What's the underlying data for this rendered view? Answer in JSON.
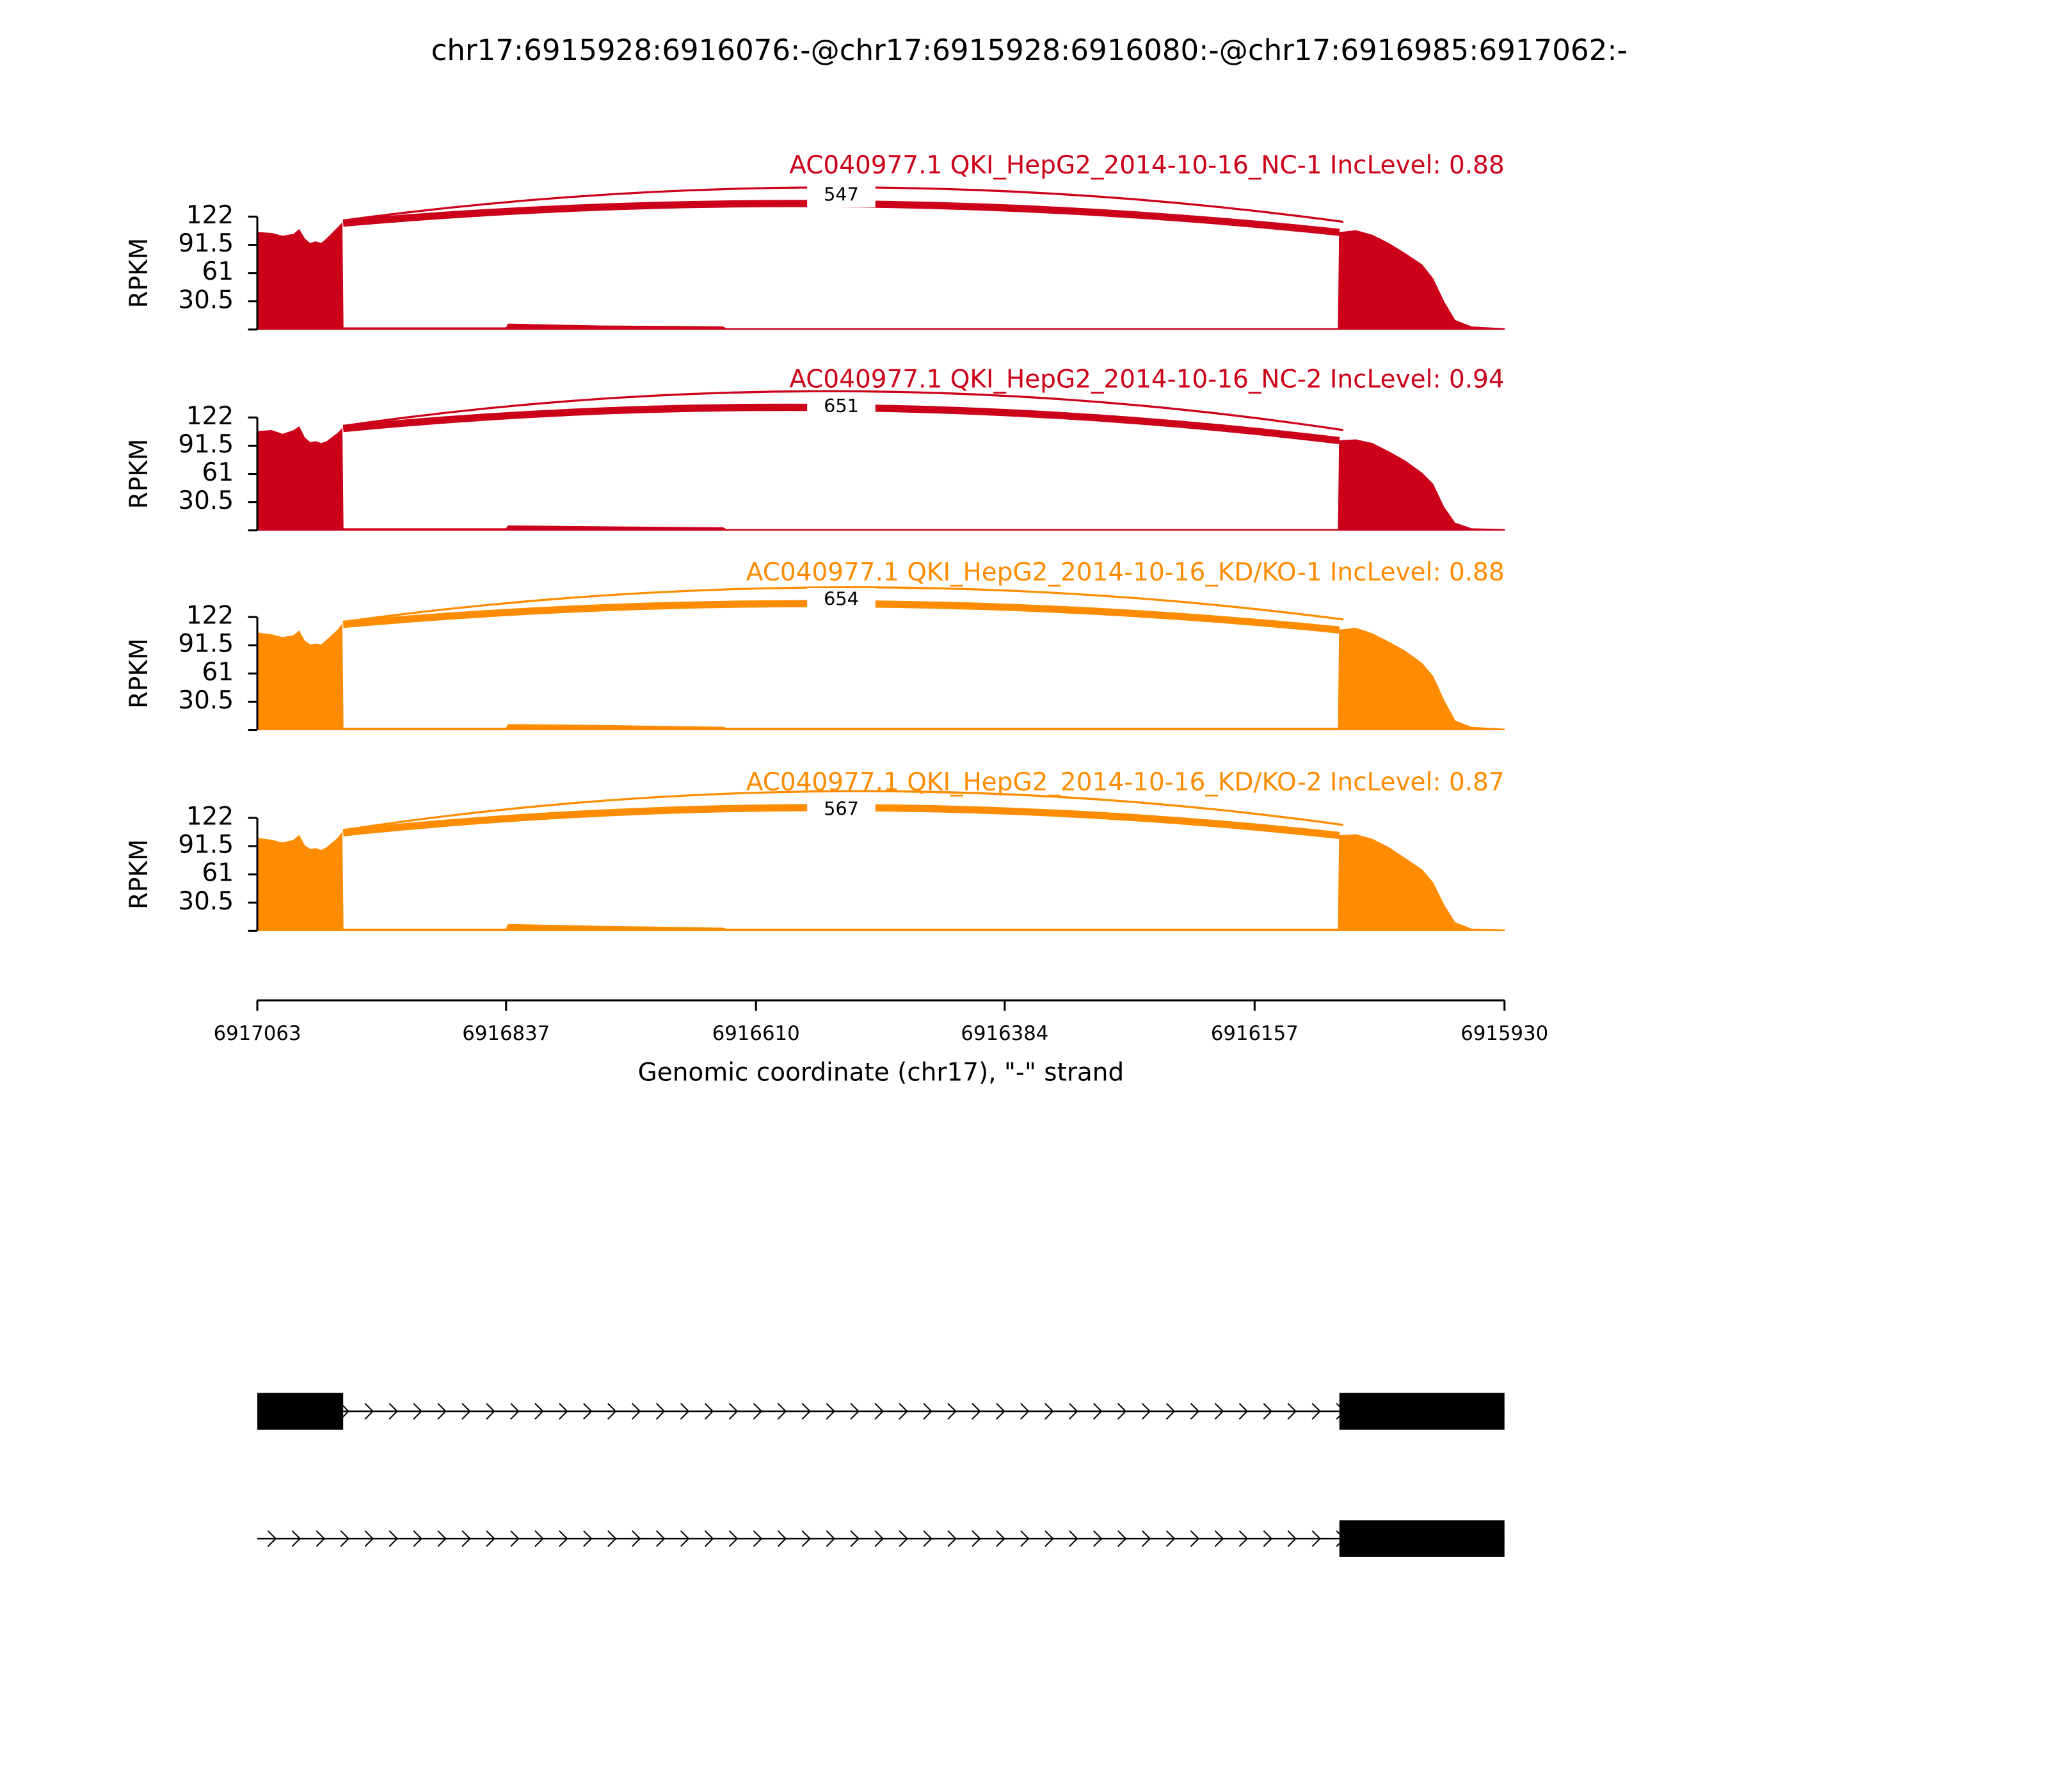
{
  "title": "chr17:6915928:6916076:-@chr17:6915928:6916080:-@chr17:6916985:6917062:-",
  "x_axis": {
    "label": "Genomic coordinate (chr17), \"-\" strand",
    "xlim": [
      6917063,
      6915930
    ],
    "xticks": [
      6917063,
      6916837,
      6916610,
      6916384,
      6916157,
      6915930
    ]
  },
  "chart_data": [
    {
      "type": "area",
      "title": "AC040977.1 QKI_HepG2_2014-10-16_NC-1 IncLevel: 0.88",
      "ylabel": "RPKM",
      "color": "#cc0018",
      "ylim": [
        0,
        122
      ],
      "yticks": [
        30.5,
        61,
        91.5,
        122
      ],
      "x": [
        6917063,
        6917050,
        6917040,
        6917030,
        6917025,
        6917020,
        6917015,
        6917010,
        6917005,
        6917000,
        6916990,
        6916986,
        6916985,
        6916837,
        6916835,
        6916750,
        6916640,
        6916637,
        6916081,
        6916080,
        6916065,
        6916050,
        6916035,
        6916020,
        6916005,
        6915995,
        6915985,
        6915975,
        6915960,
        6915930
      ],
      "values": [
        105,
        104,
        101,
        103,
        108,
        98,
        93,
        95,
        93,
        98,
        110,
        115,
        2,
        2,
        6,
        4,
        3,
        1,
        1,
        105,
        107,
        102,
        93,
        82,
        70,
        55,
        30,
        10,
        3,
        1
      ],
      "junction": {
        "start": 6916985,
        "end": 6916080,
        "count": 547
      }
    },
    {
      "type": "area",
      "title": "AC040977.1 QKI_HepG2_2014-10-16_NC-2 IncLevel: 0.94",
      "ylabel": "RPKM",
      "color": "#cc0018",
      "ylim": [
        0,
        122
      ],
      "yticks": [
        30.5,
        61,
        91.5,
        122
      ],
      "x": [
        6917063,
        6917050,
        6917040,
        6917030,
        6917025,
        6917020,
        6917015,
        6917010,
        6917005,
        6917000,
        6916990,
        6916986,
        6916985,
        6916837,
        6916835,
        6916750,
        6916640,
        6916637,
        6916081,
        6916080,
        6916065,
        6916050,
        6916035,
        6916020,
        6916005,
        6915995,
        6915985,
        6915975,
        6915960,
        6915930
      ],
      "values": [
        107,
        108,
        104,
        108,
        112,
        100,
        95,
        96,
        94,
        96,
        105,
        110,
        2,
        2,
        5,
        4,
        3,
        1,
        1,
        97,
        98,
        94,
        85,
        75,
        62,
        50,
        25,
        8,
        2,
        1
      ],
      "junction": {
        "start": 6916985,
        "end": 6916080,
        "count": 651
      }
    },
    {
      "type": "area",
      "title": "AC040977.1 QKI_HepG2_2014-10-16_KD/KO-1 IncLevel: 0.88",
      "ylabel": "RPKM",
      "color": "#ff8c00",
      "ylim": [
        0,
        122
      ],
      "yticks": [
        30.5,
        61,
        91.5,
        122
      ],
      "x": [
        6917063,
        6917050,
        6917040,
        6917030,
        6917025,
        6917020,
        6917015,
        6917010,
        6917005,
        6917000,
        6916990,
        6916986,
        6916985,
        6916837,
        6916835,
        6916750,
        6916640,
        6916637,
        6916081,
        6916080,
        6916065,
        6916050,
        6916035,
        6916020,
        6916005,
        6915995,
        6915985,
        6915975,
        6915960,
        6915930
      ],
      "values": [
        105,
        103,
        100,
        102,
        107,
        96,
        92,
        93,
        92,
        97,
        108,
        114,
        2,
        2,
        6,
        5,
        3,
        2,
        2,
        108,
        110,
        104,
        95,
        85,
        72,
        58,
        32,
        10,
        3,
        1
      ],
      "junction": {
        "start": 6916985,
        "end": 6916080,
        "count": 654
      }
    },
    {
      "type": "area",
      "title": "AC040977.1 QKI_HepG2_2014-10-16_KD/KO-2 IncLevel: 0.87",
      "ylabel": "RPKM",
      "color": "#ff8c00",
      "ylim": [
        0,
        122
      ],
      "yticks": [
        30.5,
        61,
        91.5,
        122
      ],
      "x": [
        6917063,
        6917050,
        6917040,
        6917030,
        6917025,
        6917020,
        6917015,
        6917010,
        6917005,
        6917000,
        6916990,
        6916986,
        6916985,
        6916837,
        6916835,
        6916750,
        6916640,
        6916637,
        6916081,
        6916080,
        6916065,
        6916050,
        6916035,
        6916020,
        6916005,
        6915995,
        6915985,
        6915975,
        6915960,
        6915930
      ],
      "values": [
        100,
        98,
        95,
        98,
        103,
        92,
        88,
        89,
        87,
        90,
        100,
        106,
        2,
        2,
        7,
        5,
        3,
        2,
        2,
        103,
        104,
        99,
        90,
        78,
        66,
        52,
        28,
        9,
        2,
        1
      ],
      "junction": {
        "start": 6916985,
        "end": 6916080,
        "count": 567
      }
    }
  ],
  "gene_model": [
    {
      "start": 6917063,
      "end": 6915930,
      "exons": [
        [
          6917063,
          6916985
        ],
        [
          6916080,
          6915930
        ]
      ]
    },
    {
      "start": 6917063,
      "end": 6915930,
      "exons": [
        [
          6916080,
          6915930
        ]
      ]
    }
  ]
}
